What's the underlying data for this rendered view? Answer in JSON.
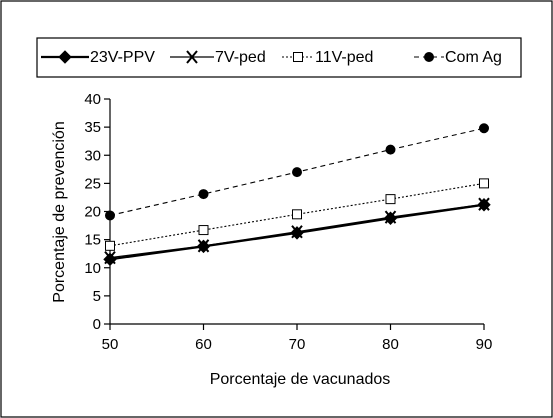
{
  "chart_data": {
    "type": "line",
    "xlabel": "Porcentaje de vacunados",
    "ylabel": "Porcentaje de prevención",
    "x": [
      50,
      60,
      70,
      80,
      90
    ],
    "xlim": [
      50,
      90
    ],
    "ylim": [
      0,
      40
    ],
    "xticks": [
      50,
      60,
      70,
      80,
      90
    ],
    "yticks": [
      0,
      5,
      10,
      15,
      20,
      25,
      30,
      35,
      40
    ],
    "grid": false,
    "legend_position": "top",
    "series": [
      {
        "name": "23V-PPV",
        "values": [
          11.5,
          13.8,
          16.2,
          18.8,
          21.2
        ],
        "color": "#000000",
        "line": "solid-thick",
        "marker": "diamond-filled"
      },
      {
        "name": "7V-ped",
        "values": [
          11.8,
          13.9,
          16.4,
          19.0,
          21.3
        ],
        "color": "#000000",
        "line": "solid",
        "marker": "x"
      },
      {
        "name": "11V-ped",
        "values": [
          13.9,
          16.7,
          19.5,
          22.2,
          25.0
        ],
        "color": "#000000",
        "line": "dotted",
        "marker": "square-open"
      },
      {
        "name": "Com Ag",
        "values": [
          19.3,
          23.1,
          27.0,
          31.0,
          34.8
        ],
        "color": "#000000",
        "line": "dashed",
        "marker": "circle-filled"
      }
    ]
  }
}
